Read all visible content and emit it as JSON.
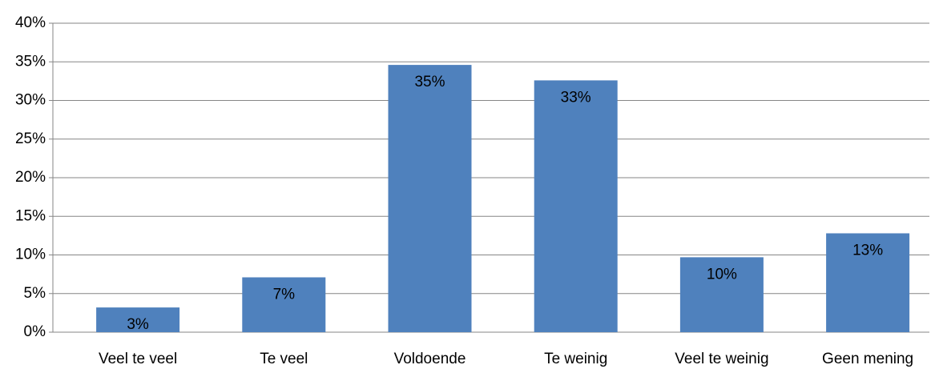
{
  "chart_data": {
    "type": "bar",
    "categories": [
      "Veel te veel",
      "Te veel",
      "Voldoende",
      "Te weinig",
      "Veel te weinig",
      "Geen mening"
    ],
    "values": [
      3.2,
      7.1,
      34.6,
      32.6,
      9.7,
      12.8
    ],
    "value_labels": [
      "3%",
      "7%",
      "35%",
      "33%",
      "10%",
      "13%"
    ],
    "color": "#4f81bd",
    "ylim": [
      0,
      40
    ],
    "yticks": [
      {
        "value": 0,
        "label": "0%"
      },
      {
        "value": 5,
        "label": "5%"
      },
      {
        "value": 10,
        "label": "10%"
      },
      {
        "value": 15,
        "label": "15%"
      },
      {
        "value": 20,
        "label": "20%"
      },
      {
        "value": 25,
        "label": "25%"
      },
      {
        "value": 30,
        "label": "30%"
      },
      {
        "value": 35,
        "label": "35%"
      },
      {
        "value": 40,
        "label": "40%"
      }
    ],
    "grid": true
  }
}
